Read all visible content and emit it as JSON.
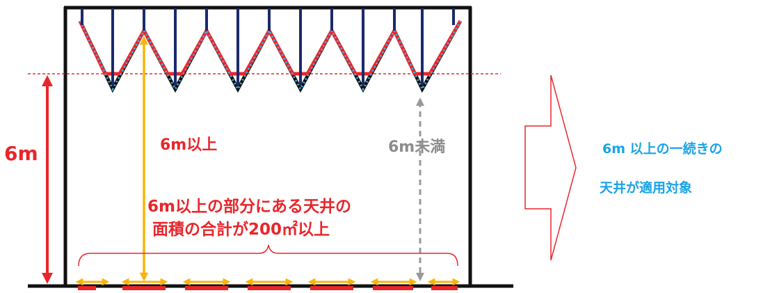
{
  "colors": {
    "red": "#e8262b",
    "navy": "#1b2a6b",
    "cyan": "#1aa3e6",
    "dotted": "#3fb6ea",
    "orange": "#f7b50c",
    "gray": "#999999",
    "black": "#111111"
  },
  "labels": {
    "height_6m": "6m",
    "six_m_or_more": "6m以上",
    "under_six_m": "6m未満",
    "area_line1": "6m以上の部分にある天井の",
    "area_line2": "面積の合計が200㎡以上"
  },
  "result": {
    "line1": "6m 以上の一続きの",
    "line2": "天井が適用対象"
  }
}
